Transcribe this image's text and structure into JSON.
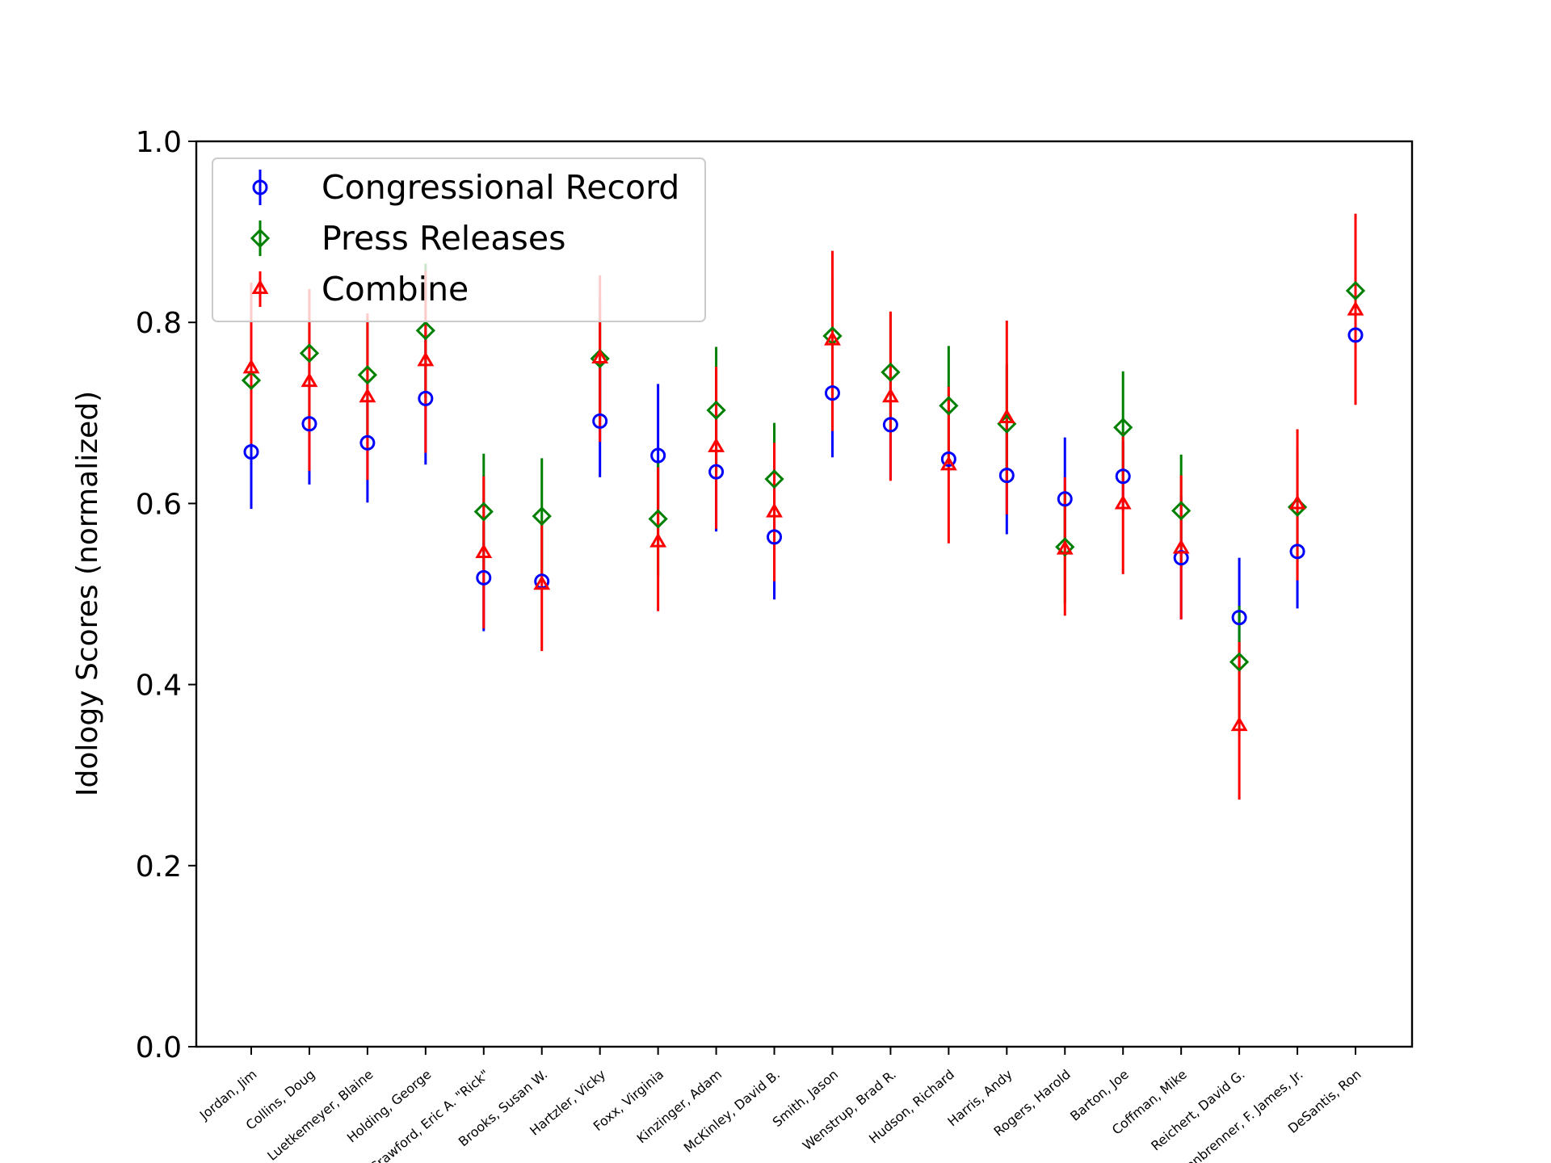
{
  "chart_data": {
    "type": "scatter",
    "ylabel": "Idology Scores (normalized)",
    "ylim": [
      0.0,
      1.0
    ],
    "yticks": [
      "0.0",
      "0.2",
      "0.4",
      "0.6",
      "0.8",
      "1.0"
    ],
    "grid": false,
    "legend_position": "top-left",
    "categories": [
      "Jordan, Jim",
      "Collins, Doug",
      "Luetkemeyer, Blaine",
      "Holding, George",
      "Crawford, Eric A. \"Rick\"",
      "Brooks, Susan W.",
      "Hartzler, Vicky",
      "Foxx, Virginia",
      "Kinzinger, Adam",
      "McKinley, David B.",
      "Smith, Jason",
      "Wenstrup, Brad R.",
      "Hudson, Richard",
      "Harris, Andy",
      "Rogers, Harold",
      "Barton, Joe",
      "Coffman, Mike",
      "Reichert, David G.",
      "Sensenbrenner, F. James, Jr.",
      "DeSantis, Ron"
    ],
    "series": [
      {
        "name": "Congressional Record",
        "color": "#0000ff",
        "marker": "circle",
        "values": [
          0.657,
          0.688,
          0.667,
          0.716,
          0.518,
          0.514,
          0.691,
          0.653,
          0.635,
          0.563,
          0.722,
          0.687,
          0.649,
          0.631,
          0.605,
          0.63,
          0.54,
          0.474,
          0.547,
          0.786
        ],
        "lower": [
          0.594,
          0.621,
          0.601,
          0.643,
          0.459,
          0.514,
          0.629,
          0.594,
          0.569,
          0.494,
          0.651,
          0.626,
          0.649,
          0.566,
          0.553,
          0.592,
          0.472,
          0.413,
          0.484,
          0.727
        ],
        "upper": [
          0.72,
          0.755,
          0.733,
          0.789,
          0.577,
          0.514,
          0.753,
          0.732,
          0.701,
          0.632,
          0.793,
          0.748,
          0.649,
          0.696,
          0.673,
          0.668,
          0.608,
          0.54,
          0.61,
          0.845
        ]
      },
      {
        "name": "Press Releases",
        "color": "#008000",
        "marker": "diamond",
        "values": [
          0.736,
          0.766,
          0.742,
          0.791,
          0.591,
          0.586,
          0.76,
          0.583,
          0.703,
          0.627,
          0.785,
          0.745,
          0.708,
          0.688,
          0.552,
          0.684,
          0.592,
          0.425,
          0.596,
          0.835
        ],
        "lower": [
          0.67,
          0.696,
          0.676,
          0.717,
          0.527,
          0.522,
          0.694,
          0.52,
          0.633,
          0.565,
          0.719,
          0.679,
          0.642,
          0.622,
          0.49,
          0.622,
          0.53,
          0.363,
          0.534,
          0.769
        ],
        "upper": [
          0.802,
          0.836,
          0.808,
          0.865,
          0.655,
          0.65,
          0.826,
          0.646,
          0.773,
          0.689,
          0.851,
          0.811,
          0.774,
          0.754,
          0.614,
          0.746,
          0.654,
          0.487,
          0.658,
          0.901
        ]
      },
      {
        "name": "Combine",
        "color": "#ff0000",
        "marker": "triangle",
        "values": [
          0.749,
          0.734,
          0.717,
          0.757,
          0.545,
          0.51,
          0.76,
          0.557,
          0.662,
          0.59,
          0.78,
          0.717,
          0.642,
          0.694,
          0.549,
          0.599,
          0.55,
          0.354,
          0.599,
          0.813
        ],
        "lower": [
          0.666,
          0.636,
          0.626,
          0.656,
          0.462,
          0.437,
          0.668,
          0.481,
          0.572,
          0.514,
          0.68,
          0.625,
          0.556,
          0.588,
          0.476,
          0.522,
          0.472,
          0.273,
          0.515,
          0.709
        ],
        "upper": [
          0.844,
          0.837,
          0.81,
          0.857,
          0.63,
          0.58,
          0.852,
          0.64,
          0.751,
          0.667,
          0.879,
          0.812,
          0.729,
          0.802,
          0.629,
          0.678,
          0.631,
          0.447,
          0.682,
          0.92
        ]
      }
    ]
  }
}
